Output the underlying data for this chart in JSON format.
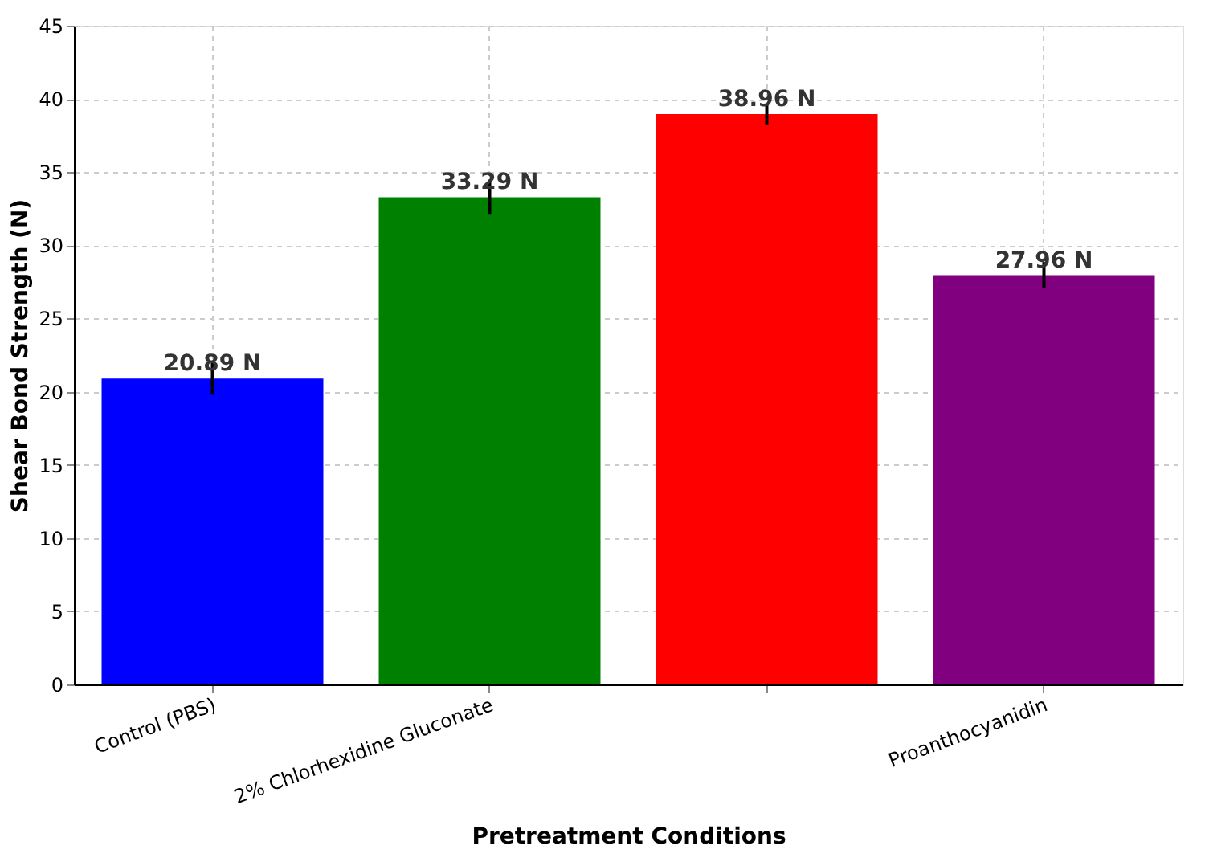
{
  "chart_data": {
    "type": "bar",
    "xlabel": "Pretreatment Conditions",
    "ylabel": "Shear Bond Strength (N)",
    "categories": [
      "Control (PBS)",
      "2% Chlorhexidine Gluconate",
      null,
      "Proanthocyanidin"
    ],
    "values": [
      20.89,
      33.29,
      38.96,
      27.96
    ],
    "colors": [
      "#0000ff",
      "#008000",
      "#ff0000",
      "#800080"
    ],
    "errors": [
      1.1,
      1.2,
      0.7,
      0.9
    ],
    "value_labels": [
      "20.89 N",
      "33.29 N",
      "38.96 N",
      "27.96 N"
    ],
    "ylim": [
      0,
      45
    ],
    "yticks": [
      0,
      5,
      10,
      15,
      20,
      25,
      30,
      35,
      40,
      45
    ],
    "grid": true
  }
}
